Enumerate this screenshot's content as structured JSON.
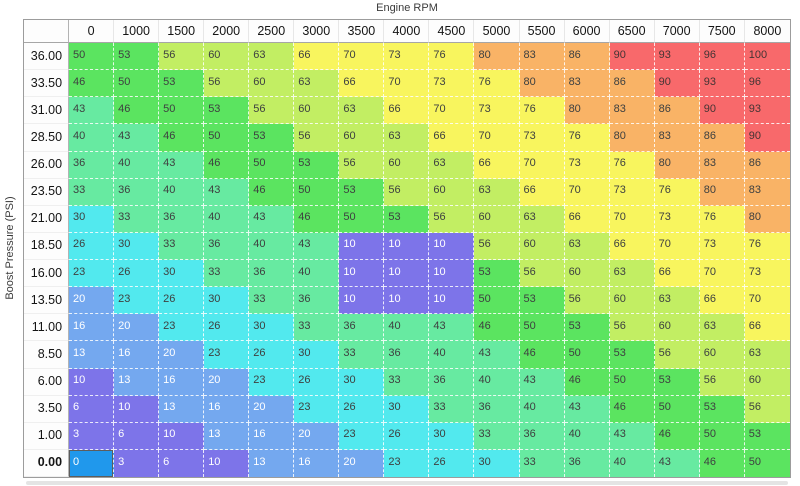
{
  "axis": {
    "x_title": "Engine RPM",
    "y_title": "Boost Pressure (PSI)"
  },
  "table": {
    "column_headers": [
      "0",
      "1000",
      "1500",
      "2000",
      "2500",
      "3000",
      "3500",
      "4000",
      "4500",
      "5000",
      "5500",
      "6000",
      "6500",
      "7000",
      "7500",
      "8000"
    ],
    "row_headers": [
      "36.00",
      "33.50",
      "31.00",
      "28.50",
      "26.00",
      "23.50",
      "21.00",
      "18.50",
      "16.00",
      "13.50",
      "11.00",
      "8.50",
      "6.00",
      "3.50",
      "1.00",
      "0.00"
    ],
    "rows": [
      [
        50,
        53,
        56,
        60,
        63,
        66,
        70,
        73,
        76,
        80,
        83,
        86,
        90,
        93,
        96,
        100
      ],
      [
        46,
        50,
        53,
        56,
        60,
        63,
        66,
        70,
        73,
        76,
        80,
        83,
        86,
        90,
        93,
        96
      ],
      [
        43,
        46,
        50,
        53,
        56,
        60,
        63,
        66,
        70,
        73,
        76,
        80,
        83,
        86,
        90,
        93
      ],
      [
        40,
        43,
        46,
        50,
        53,
        56,
        60,
        63,
        66,
        70,
        73,
        76,
        80,
        83,
        86,
        90
      ],
      [
        36,
        40,
        43,
        46,
        50,
        53,
        56,
        60,
        63,
        66,
        70,
        73,
        76,
        80,
        83,
        86
      ],
      [
        33,
        36,
        40,
        43,
        46,
        50,
        53,
        56,
        60,
        63,
        66,
        70,
        73,
        76,
        80,
        83
      ],
      [
        30,
        33,
        36,
        40,
        43,
        46,
        50,
        53,
        56,
        60,
        63,
        66,
        70,
        73,
        76,
        80
      ],
      [
        26,
        30,
        33,
        36,
        40,
        43,
        10,
        10,
        10,
        56,
        60,
        63,
        66,
        70,
        73,
        76
      ],
      [
        23,
        26,
        30,
        33,
        36,
        40,
        10,
        10,
        10,
        53,
        56,
        60,
        63,
        66,
        70,
        73
      ],
      [
        20,
        23,
        26,
        30,
        33,
        36,
        10,
        10,
        10,
        50,
        53,
        56,
        60,
        63,
        66,
        70
      ],
      [
        16,
        20,
        23,
        26,
        30,
        33,
        36,
        40,
        43,
        46,
        50,
        53,
        56,
        60,
        63,
        66
      ],
      [
        13,
        16,
        20,
        23,
        26,
        30,
        33,
        36,
        40,
        43,
        46,
        50,
        53,
        56,
        60,
        63
      ],
      [
        10,
        13,
        16,
        20,
        23,
        26,
        30,
        33,
        36,
        40,
        43,
        46,
        50,
        53,
        56,
        60
      ],
      [
        6,
        10,
        13,
        16,
        20,
        23,
        26,
        30,
        33,
        36,
        40,
        43,
        46,
        50,
        53,
        56
      ],
      [
        3,
        6,
        10,
        13,
        16,
        20,
        23,
        26,
        30,
        33,
        36,
        40,
        43,
        46,
        50,
        53
      ],
      [
        0,
        3,
        6,
        10,
        13,
        16,
        20,
        23,
        26,
        30,
        33,
        36,
        40,
        43,
        46,
        50
      ]
    ],
    "selection": {
      "row_header": "0.00",
      "column_header": "0",
      "value": 0
    }
  },
  "colors": {
    "selected_cell_bg": "#2098ec",
    "selected_cell_text": "#ffffff",
    "scale": [
      {
        "max": 10,
        "bg": "#7d74e9",
        "text": "#ffffff"
      },
      {
        "max": 20,
        "bg": "#74a8ef",
        "text": "#ffffff"
      },
      {
        "max": 30,
        "bg": "#52e9ee",
        "text": "#3e4040"
      },
      {
        "max": 43,
        "bg": "#67eaa1",
        "text": "#3e4040"
      },
      {
        "max": 53,
        "bg": "#5be460",
        "text": "#3e4040"
      },
      {
        "max": 63,
        "bg": "#c2ee63",
        "text": "#3e4040"
      },
      {
        "max": 76,
        "bg": "#f8f55e",
        "text": "#3e4040"
      },
      {
        "max": 86,
        "bg": "#f9b366",
        "text": "#3e4040"
      },
      {
        "max": 100,
        "bg": "#f8696b",
        "text": "#443434"
      }
    ]
  }
}
